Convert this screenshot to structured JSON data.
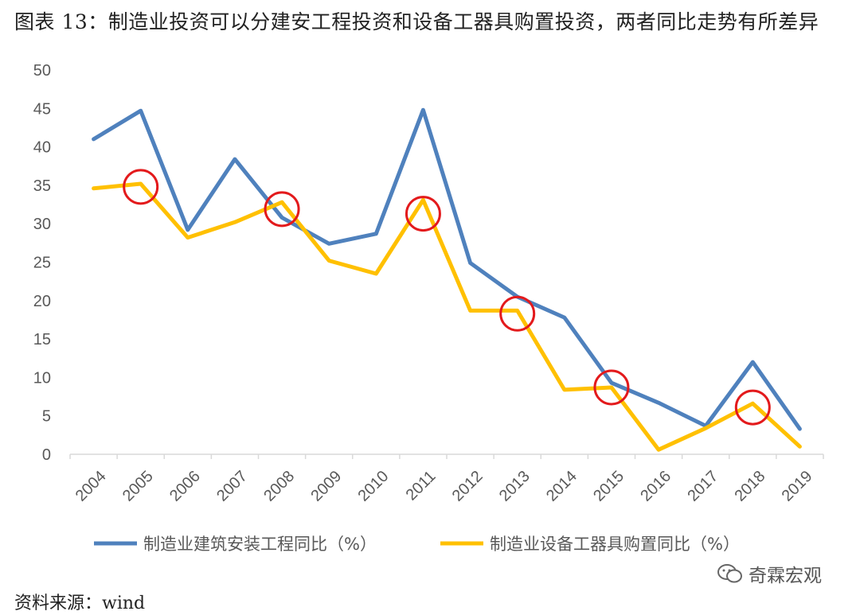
{
  "header": {
    "title": "图表 13：制造业投资可以分建安工程投资和设备工器具购置投资，两者同比走势有所差异"
  },
  "footer": {
    "source": "资料来源：wind",
    "watermark": "奇霖宏观",
    "watermark_icon": "wechat-icon"
  },
  "colors": {
    "series1": "#4f81bd",
    "series2": "#ffc000",
    "circle": "#e31a1c",
    "axis": "#d9d9d9",
    "text": "#595959"
  },
  "chart_data": {
    "type": "line",
    "categories": [
      "2004",
      "2005",
      "2006",
      "2007",
      "2008",
      "2009",
      "2010",
      "2011",
      "2012",
      "2013",
      "2014",
      "2015",
      "2016",
      "2017",
      "2018",
      "2019"
    ],
    "ylim": [
      0,
      50
    ],
    "yticks": [
      0,
      5,
      10,
      15,
      20,
      25,
      30,
      35,
      40,
      45,
      50
    ],
    "grid": false,
    "legend_position": "bottom",
    "series": [
      {
        "name": "制造业建筑安装工程同比（%）",
        "values": [
          41.0,
          44.7,
          29.2,
          38.4,
          30.8,
          27.4,
          28.7,
          44.8,
          24.9,
          20.5,
          17.8,
          9.3,
          6.7,
          3.7,
          12.0,
          3.3
        ]
      },
      {
        "name": "制造业设备工器具购置同比（%）",
        "values": [
          34.6,
          35.2,
          28.2,
          30.2,
          32.8,
          25.2,
          23.5,
          33.1,
          18.7,
          18.7,
          8.4,
          8.7,
          0.6,
          3.4,
          6.6,
          1.0
        ]
      }
    ],
    "annotations": [
      {
        "type": "circle",
        "x": "2005",
        "y": 34.8
      },
      {
        "type": "circle",
        "x": "2008",
        "y": 31.9
      },
      {
        "type": "circle",
        "x": "2011",
        "y": 31.3
      },
      {
        "type": "circle",
        "x": "2013",
        "y": 18.3
      },
      {
        "type": "circle",
        "x": "2015",
        "y": 8.7
      },
      {
        "type": "circle",
        "x": "2018",
        "y": 6.1
      }
    ]
  }
}
